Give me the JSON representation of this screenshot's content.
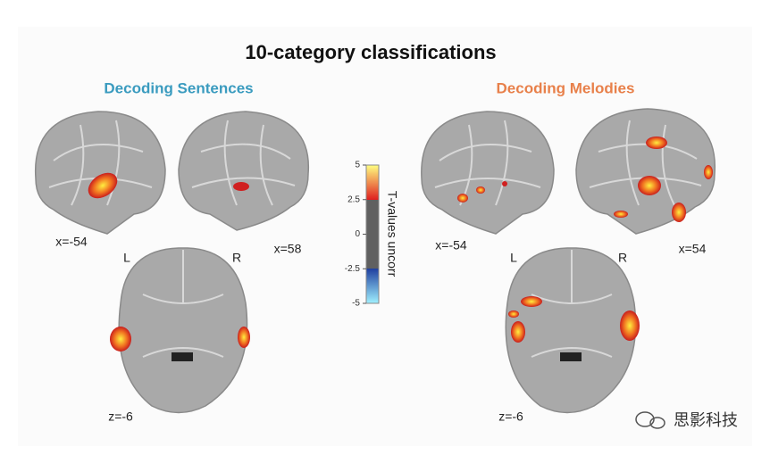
{
  "title": "10-category classifications",
  "panels": [
    {
      "title": "Decoding Sentences",
      "sagittal_left": "x=-54",
      "sagittal_right": "x=58",
      "axial_left": "L",
      "axial_right": "R",
      "axial": "z=-6"
    },
    {
      "title": "Decoding Melodies",
      "sagittal_left": "x=-54",
      "sagittal_right": "x=54",
      "axial_left": "L",
      "axial_right": "R",
      "axial": "z=-6"
    }
  ],
  "colorbar": {
    "label": "T-values uncorr",
    "ticks": [
      5,
      2.5,
      0,
      -2.5,
      -5
    ]
  },
  "watermark": "思影科技"
}
